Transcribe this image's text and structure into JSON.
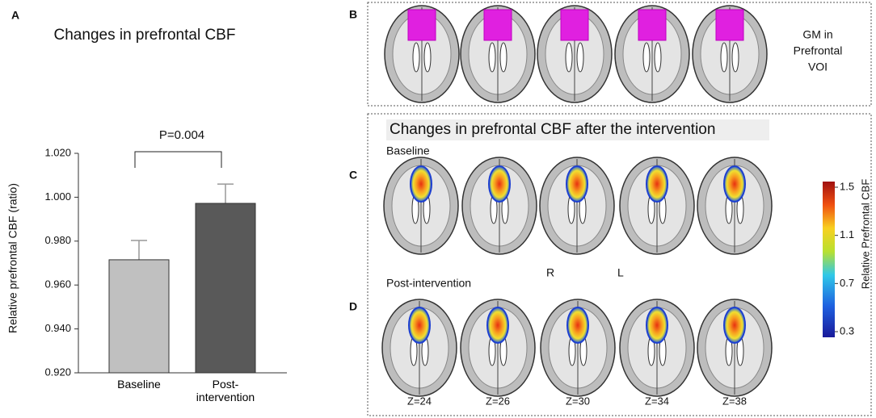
{
  "chart_data": {
    "type": "bar",
    "title": "Changes in prefrontal CBF",
    "y_label": "Relative prefrontal CBF (ratio)",
    "categories": [
      "Baseline",
      "Post-intervention"
    ],
    "values": [
      0.9715,
      0.9972
    ],
    "errors": [
      0.0088,
      0.0088
    ],
    "colors": [
      "#c0c0c0",
      "#595959"
    ],
    "ylim": [
      0.92,
      1.02
    ],
    "yticks": [
      {
        "value": 0.92,
        "label": "0.920"
      },
      {
        "value": 0.94,
        "label": "0.940"
      },
      {
        "value": 0.96,
        "label": "0.960"
      },
      {
        "value": 0.98,
        "label": "0.980"
      },
      {
        "value": 1.0,
        "label": "1.000"
      },
      {
        "value": 1.02,
        "label": "1.020"
      }
    ],
    "annotation": "P=0.004",
    "grid": false
  },
  "figure": {
    "panel_labels": [
      "A",
      "B",
      "C",
      "D"
    ],
    "voi_label": [
      "GM in",
      "Prefrontal",
      "VOI"
    ],
    "cbf_title": "Changes in prefrontal CBF after the intervention",
    "row_labels": [
      "Baseline",
      "Post-intervention"
    ],
    "orientation": [
      "R",
      "L"
    ],
    "slices": [
      "Z=24",
      "Z=26",
      "Z=30",
      "Z=34",
      "Z=38"
    ],
    "colorbar": {
      "label": "Relative Prefrontal CBF",
      "lim": [
        0.3,
        1.5
      ],
      "ticks": [
        0.3,
        0.7,
        1.1,
        1.5
      ]
    }
  }
}
